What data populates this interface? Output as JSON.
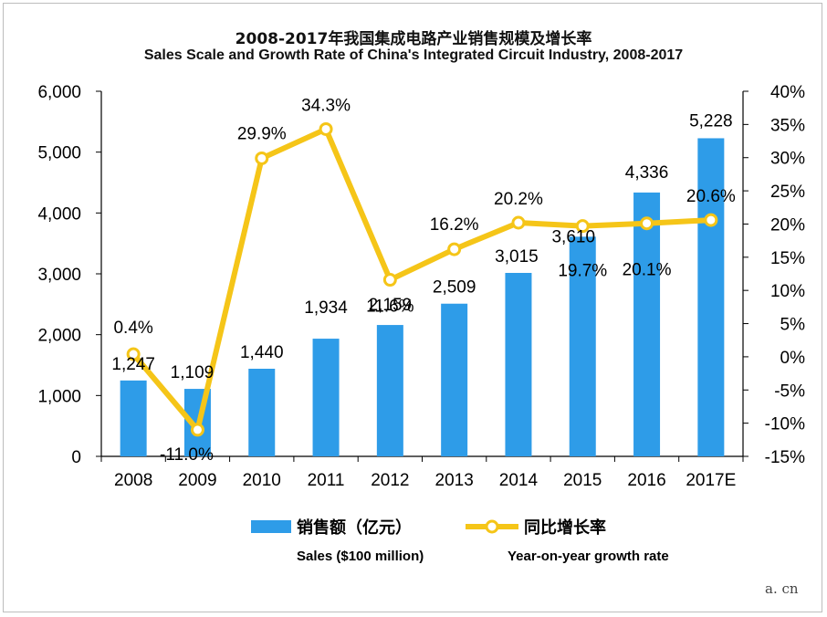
{
  "chart_data": {
    "type": "bar+line",
    "title": "2008-2017年我国集成电路产业销售规模及增长率",
    "subtitle": "Sales Scale and Growth Rate of China's Integrated Circuit Industry, 2008-2017",
    "categories": [
      "2008",
      "2009",
      "2010",
      "2011",
      "2012",
      "2013",
      "2014",
      "2015",
      "2016",
      "2017E"
    ],
    "series": [
      {
        "name": "销售额（亿元）",
        "name_en": "Sales ($100 million)",
        "kind": "bar",
        "axis": "left",
        "color": "#2e9ce8",
        "values": [
          1247,
          1109,
          1440,
          1934,
          2159,
          2509,
          3015,
          3610,
          4336,
          5228
        ],
        "labels": [
          "1,247",
          "1,109",
          "1,440",
          "1,934",
          "2,159",
          "2,509",
          "3,015",
          "3,610",
          "4,336",
          "5,228"
        ]
      },
      {
        "name": "同比增长率",
        "name_en": "Year-on-year growth rate",
        "kind": "line",
        "axis": "right",
        "color": "#f5c518",
        "values": [
          0.4,
          -11.0,
          29.9,
          34.3,
          11.6,
          16.2,
          20.2,
          19.7,
          20.1,
          20.6
        ],
        "labels": [
          "0.4%",
          "-11.0%",
          "29.9%",
          "34.3%",
          "11.6%",
          "16.2%",
          "20.2%",
          "19.7%",
          "20.1%",
          "20.6%"
        ]
      }
    ],
    "y_left": {
      "lim": [
        0,
        6000
      ],
      "ticks": [
        "0",
        "1,000",
        "2,000",
        "3,000",
        "4,000",
        "5,000",
        "6,000"
      ]
    },
    "y_right": {
      "lim": [
        -15,
        40
      ],
      "ticks": [
        "-15%",
        "-10%",
        "-5%",
        "0%",
        "5%",
        "10%",
        "15%",
        "20%",
        "25%",
        "30%",
        "35%",
        "40%"
      ]
    },
    "grid": false,
    "legend": "bottom-center"
  },
  "watermark": "a. cn"
}
